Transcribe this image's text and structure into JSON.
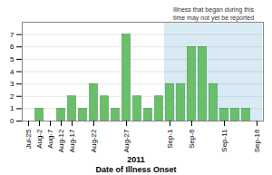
{
  "chart_data": {
    "type": "bar",
    "categories": [
      "Jul-25",
      "Aug-2",
      "Aug-7",
      "Aug-12",
      "Aug-17",
      null,
      "Aug-22",
      null,
      null,
      "Aug-27",
      null,
      null,
      null,
      "Sep-1",
      null,
      "Sep-6",
      null,
      null,
      "Sep-11",
      null,
      null,
      "Sep-16"
    ],
    "values": [
      0,
      1,
      0,
      1,
      2,
      1,
      3,
      2,
      1,
      7,
      2,
      1,
      2,
      3,
      3,
      6,
      6,
      3,
      1,
      1,
      1,
      0
    ],
    "color": "#6abf6a",
    "ylim": [
      0,
      8
    ],
    "yticks": [
      0,
      1,
      2,
      3,
      4,
      5,
      6,
      7
    ],
    "grid": true,
    "xlabel": "Date of Illness Onset",
    "year_label": "2011",
    "annotation": {
      "text": "Illness that began during this\ntime may not yet be reported",
      "start": "Sep-1",
      "color": "#daeaf5"
    }
  }
}
